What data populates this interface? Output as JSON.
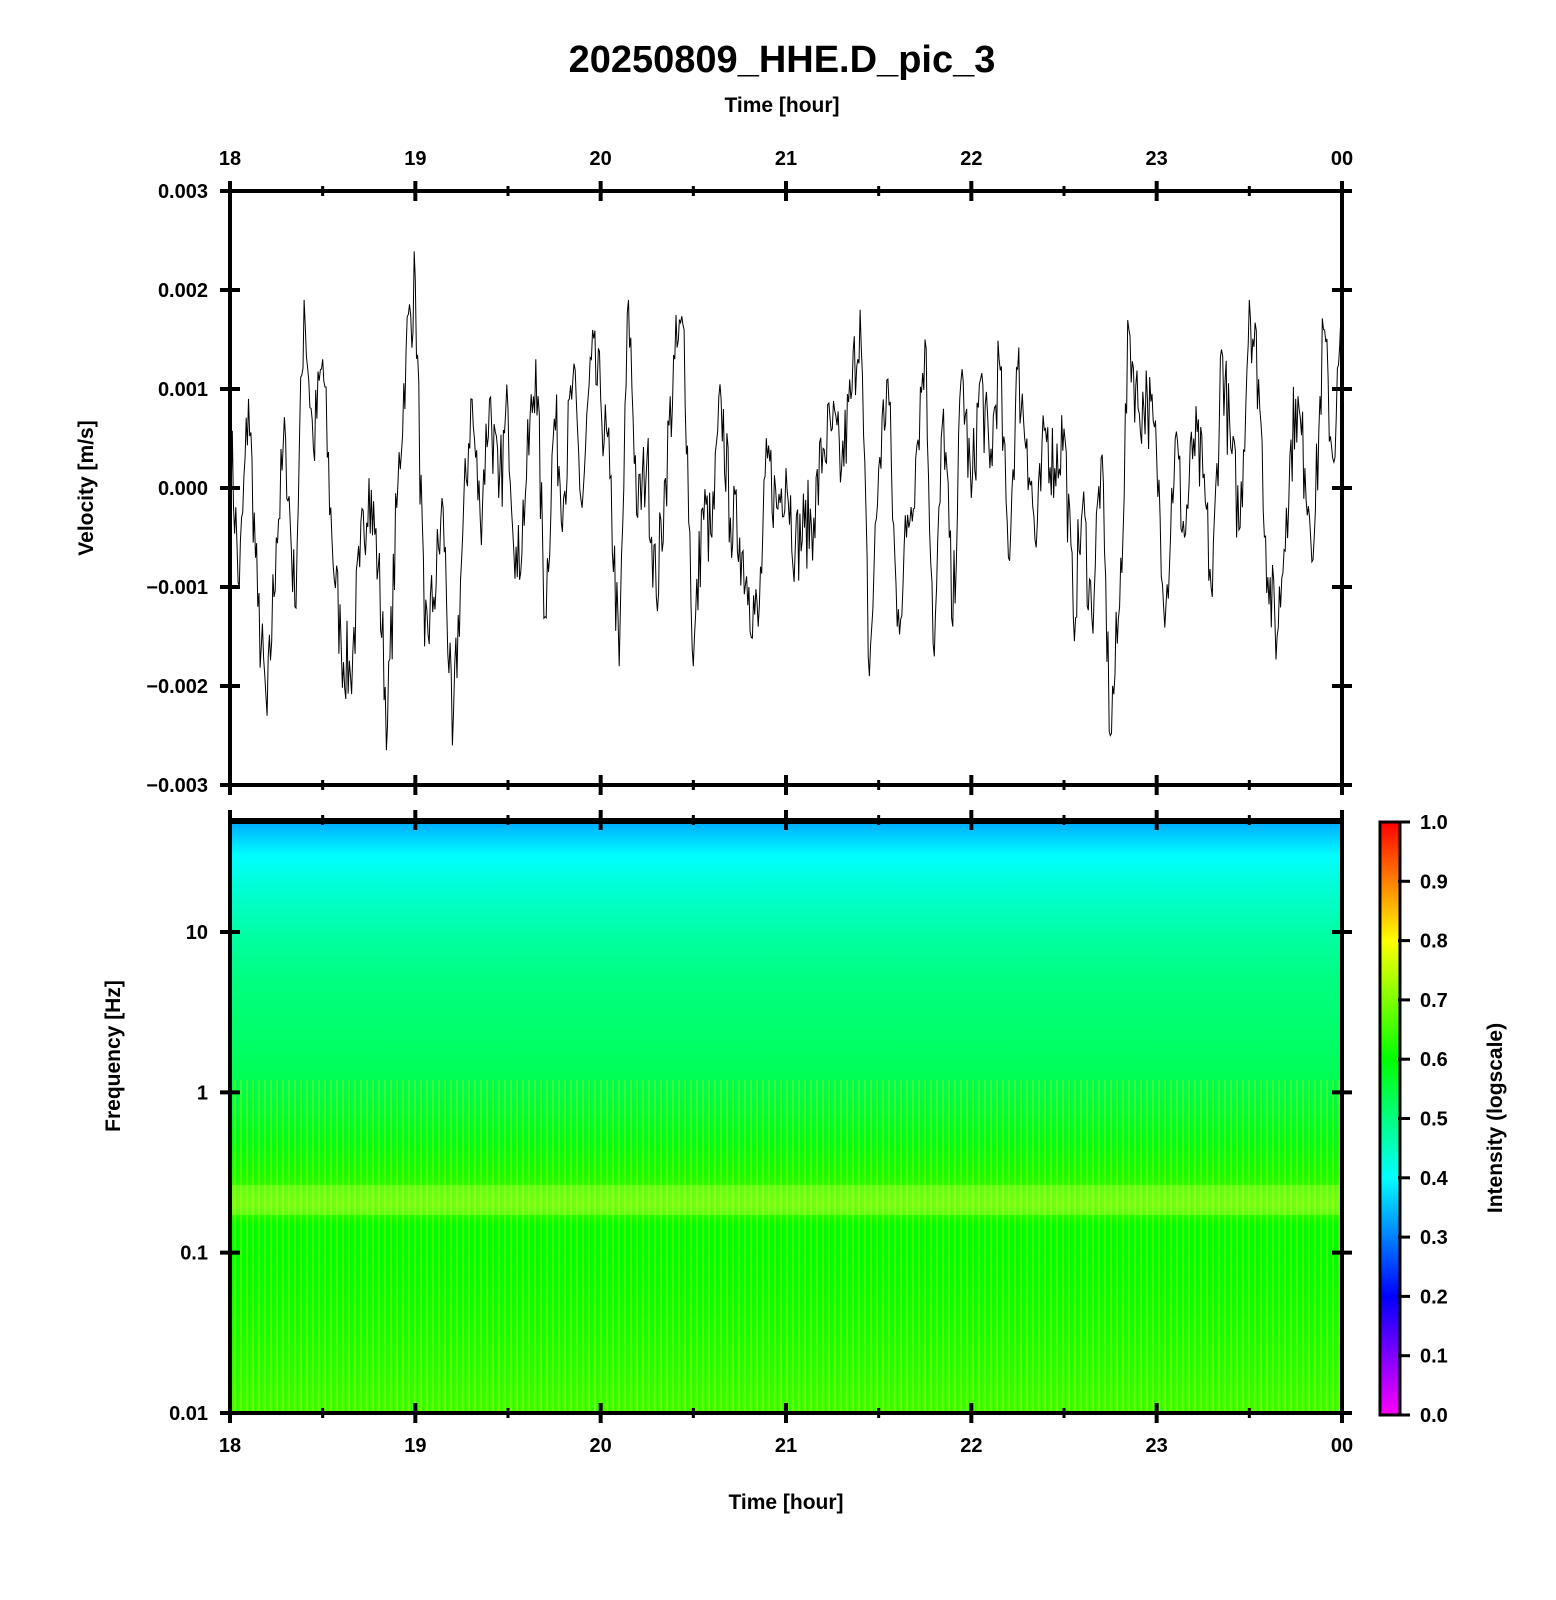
{
  "chart_data": [
    {
      "type": "line",
      "panel": "waveform",
      "title": "20250809_HHE.D_pic_3",
      "xlabel_top": "Time [hour]",
      "ylabel": "Velocity [m/s]",
      "x_ticks": [
        "18",
        "19",
        "20",
        "21",
        "22",
        "23",
        "00"
      ],
      "xlim_hours": [
        18,
        24
      ],
      "ylim": [
        -0.003,
        0.003
      ],
      "y_ticks": [
        0.003,
        0.002,
        0.001,
        0.0,
        -0.001,
        -0.002,
        -0.003
      ],
      "y_tick_labels": [
        "0.003",
        "0.002",
        "0.001",
        "0.000",
        "−0.001",
        "−0.002",
        "−0.003"
      ],
      "grid": false,
      "line_color": "#000000",
      "series": [
        {
          "x_hours": [
            18.0,
            18.05,
            18.1,
            18.15,
            18.2,
            18.25,
            18.3,
            18.35,
            18.4,
            18.45,
            18.5,
            18.55,
            18.6,
            18.65,
            18.7,
            18.75,
            18.8,
            18.85,
            18.9,
            18.95,
            19.0,
            19.05,
            19.1,
            19.15,
            19.2,
            19.25,
            19.3,
            19.35,
            19.4,
            19.45,
            19.5,
            19.55,
            19.6,
            19.65,
            19.7,
            19.75,
            19.8,
            19.85,
            19.9,
            19.95,
            20.0,
            20.05,
            20.1,
            20.15,
            20.2,
            20.25,
            20.3,
            20.35,
            20.4,
            20.45,
            20.5,
            20.55,
            20.6,
            20.65,
            20.7,
            20.75,
            20.8,
            20.85,
            20.9,
            20.95,
            21.0,
            21.05,
            21.1,
            21.15,
            21.2,
            21.25,
            21.3,
            21.35,
            21.4,
            21.45,
            21.5,
            21.55,
            21.6,
            21.65,
            21.7,
            21.75,
            21.8,
            21.85,
            21.9,
            21.95,
            22.0,
            22.05,
            22.1,
            22.15,
            22.2,
            22.25,
            22.3,
            22.35,
            22.4,
            22.45,
            22.5,
            22.55,
            22.6,
            22.65,
            22.7,
            22.75,
            22.8,
            22.85,
            22.9,
            22.95,
            23.0,
            23.05,
            23.1,
            23.15,
            23.2,
            23.25,
            23.3,
            23.35,
            23.4,
            23.45,
            23.5,
            23.55,
            23.6,
            23.65,
            23.7,
            23.75,
            23.8,
            23.85,
            23.9,
            23.95,
            24.0
          ],
          "values": [
            0.0006,
            -0.001,
            0.0009,
            -0.0012,
            -0.0023,
            -0.0005,
            0.0005,
            -0.0012,
            0.0019,
            0.0004,
            0.0013,
            -0.0005,
            -0.0016,
            -0.0019,
            -0.0008,
            0.0001,
            -0.0008,
            -0.0024,
            -0.0002,
            0.0014,
            0.0021,
            -0.0016,
            -0.0011,
            -0.0002,
            -0.0026,
            -0.0007,
            0.0009,
            -0.0003,
            0.0009,
            -0.0001,
            0.0008,
            -0.0009,
            0.0001,
            0.0013,
            -0.0013,
            0.0007,
            -0.0001,
            0.0011,
            -0.0002,
            0.0013,
            0.0009,
            0.0001,
            -0.0018,
            0.0019,
            -0.0003,
            0.0003,
            -0.0011,
            0.0001,
            0.0013,
            0.0016,
            -0.0018,
            -0.0002,
            -0.0005,
            0.0009,
            -0.0003,
            -0.0005,
            -0.001,
            -0.0014,
            0.0003,
            -0.0002,
            0.0002,
            -0.0006,
            -0.0004,
            -0.0003,
            0.0004,
            0.0006,
            0.0002,
            0.0009,
            0.0018,
            -0.0019,
            0.0002,
            0.0011,
            -0.0014,
            -0.0005,
            0.0003,
            0.0015,
            -0.0017,
            0.0008,
            -0.0014,
            0.0012,
            -0.0001,
            0.0011,
            0.0002,
            0.0013,
            -0.0007,
            0.0012,
            0.0005,
            -0.0006,
            0.0006,
            0.0002,
            0.0006,
            -0.0013,
            -0.0002,
            -0.0013,
            0.0003,
            -0.0025,
            -0.0012,
            0.0016,
            0.0008,
            0.0009,
            0.0003,
            -0.0012,
            0.0005,
            -0.0005,
            0.0005,
            0.0001,
            -0.0011,
            0.0014,
            0.0004,
            -0.0004,
            0.0019,
            0.0011,
            -0.0009,
            -0.0015,
            -0.0002,
            0.0009,
            0.0002,
            -0.0005,
            0.0016,
            0.0003,
            0.0016
          ]
        }
      ]
    },
    {
      "type": "heatmap",
      "panel": "spectrogram",
      "xlabel": "Time [hour]",
      "ylabel": "Frequency [Hz]",
      "yscale": "log",
      "ylim": [
        0.01,
        50
      ],
      "y_ticks": [
        10,
        1,
        0.1,
        0.01
      ],
      "y_tick_labels": [
        "10",
        "1",
        "0.1",
        "0.01"
      ],
      "x_ticks": [
        "18",
        "19",
        "20",
        "21",
        "22",
        "23",
        "00"
      ],
      "xlim_hours": [
        18,
        24
      ],
      "colorbar": {
        "label": "Intensity (logscale)",
        "range": [
          0.0,
          1.0
        ],
        "ticks": [
          1.0,
          0.9,
          0.8,
          0.7,
          0.6,
          0.5,
          0.4,
          0.3,
          0.2,
          0.1,
          0.0
        ],
        "tick_labels": [
          "1.0",
          "0.9",
          "0.8",
          "0.7",
          "0.6",
          "0.5",
          "0.4",
          "0.3",
          "0.2",
          "0.1",
          "0.0"
        ],
        "colors": [
          "#ff00ff",
          "#8000ff",
          "#0000ff",
          "#0080ff",
          "#00ffff",
          "#00ff80",
          "#00ff00",
          "#80ff00",
          "#ffff00",
          "#ff8000",
          "#ff0000"
        ]
      },
      "frequency_profile": {
        "freqs_hz": [
          50,
          30,
          20,
          10,
          5,
          2,
          1,
          0.5,
          0.3,
          0.2,
          0.15,
          0.1,
          0.05,
          0.02,
          0.01
        ],
        "intensity": [
          0.33,
          0.4,
          0.43,
          0.47,
          0.5,
          0.52,
          0.54,
          0.58,
          0.62,
          0.66,
          0.6,
          0.6,
          0.61,
          0.63,
          0.65
        ]
      }
    }
  ]
}
